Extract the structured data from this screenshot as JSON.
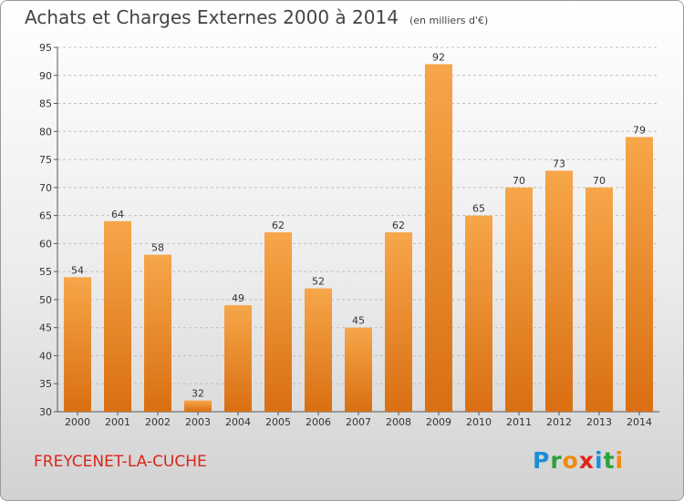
{
  "header": {
    "title": "Achats et Charges Externes 2000 à 2014",
    "unit": "(en milliers d'€)"
  },
  "footer": {
    "commune": "FREYCENET-LA-CUCHE",
    "logo": {
      "text": "Proxiti",
      "letters": [
        {
          "char": "P",
          "color": "#1a8fd8"
        },
        {
          "char": "r",
          "color": "#2aa33a"
        },
        {
          "char": "o",
          "color": "#f08a12"
        },
        {
          "char": "x",
          "color": "#e2231a"
        },
        {
          "char": "i",
          "color": "#1a8fd8"
        },
        {
          "char": "t",
          "color": "#2aa33a"
        },
        {
          "char": "i",
          "color": "#f08a12"
        }
      ]
    }
  },
  "colors": {
    "bar_light": "#f7a64a",
    "bar_dark": "#d96f12",
    "grid": "#bfbfbf",
    "title": "#444444",
    "commune": "#d9261c"
  },
  "chart_data": {
    "type": "bar",
    "title": "Achats et Charges Externes 2000 à 2014",
    "subtitle": "(en milliers d'€)",
    "xlabel": "",
    "ylabel": "",
    "categories": [
      "2000",
      "2001",
      "2002",
      "2003",
      "2004",
      "2005",
      "2006",
      "2007",
      "2008",
      "2009",
      "2010",
      "2011",
      "2012",
      "2013",
      "2014"
    ],
    "values": [
      54,
      64,
      58,
      32,
      49,
      62,
      52,
      45,
      62,
      92,
      65,
      70,
      73,
      70,
      79
    ],
    "ylim": [
      30,
      95
    ],
    "yticks": [
      30,
      35,
      40,
      45,
      50,
      55,
      60,
      65,
      70,
      75,
      80,
      85,
      90,
      95
    ],
    "grid": true,
    "legend": "none"
  }
}
